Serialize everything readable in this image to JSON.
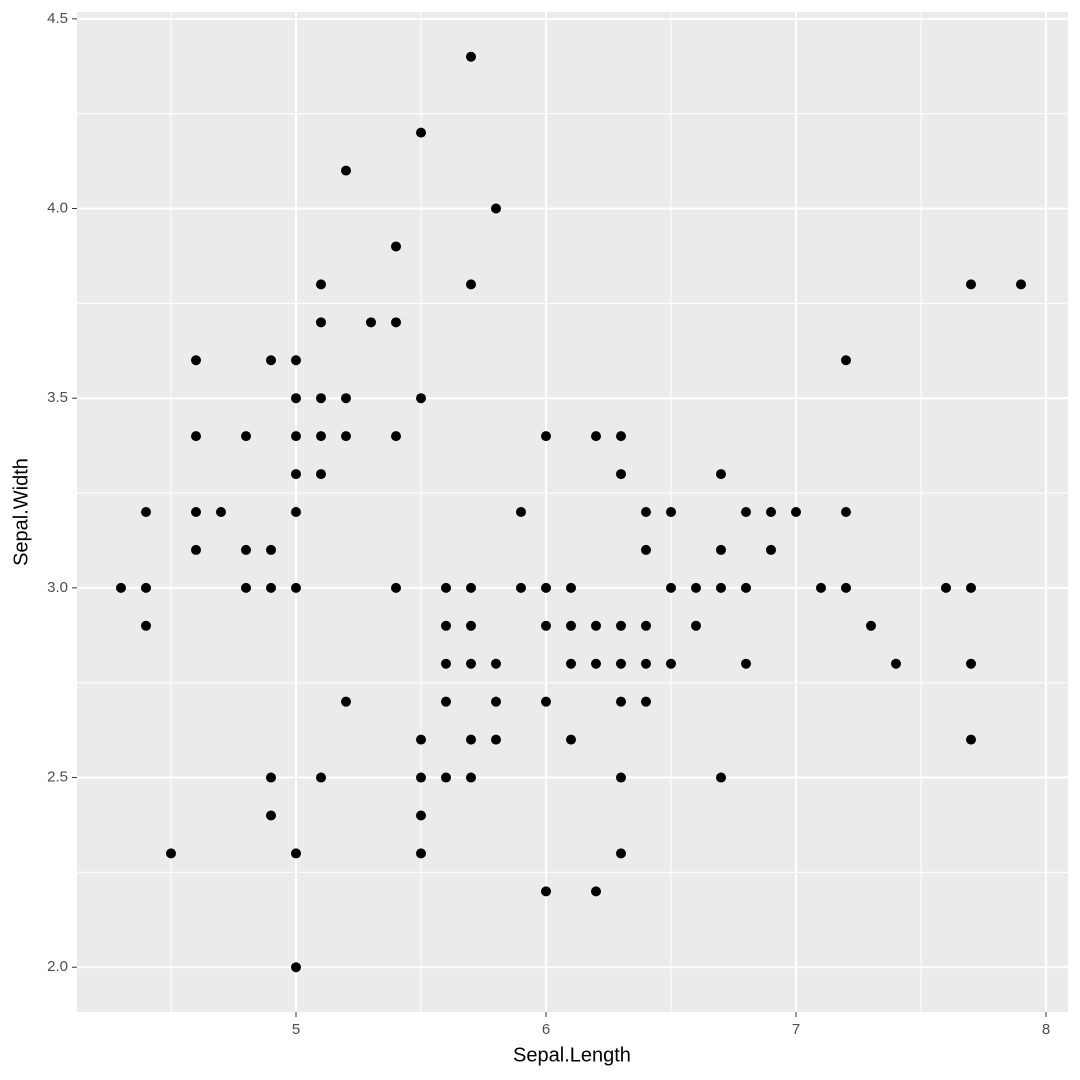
{
  "chart_data": {
    "type": "scatter",
    "x_label": "Sepal.Length",
    "y_label": "Sepal.Width",
    "x": [
      4.3,
      4.4,
      4.4,
      4.4,
      4.5,
      4.6,
      4.6,
      4.6,
      4.6,
      4.7,
      4.8,
      4.8,
      4.8,
      4.9,
      4.9,
      4.9,
      4.9,
      4.9,
      5.0,
      5.0,
      5.0,
      5.0,
      5.0,
      5.0,
      5.0,
      5.0,
      5.1,
      5.1,
      5.1,
      5.1,
      5.1,
      5.1,
      5.2,
      5.2,
      5.2,
      5.2,
      5.3,
      5.4,
      5.4,
      5.4,
      5.4,
      5.5,
      5.5,
      5.5,
      5.5,
      5.5,
      5.5,
      5.6,
      5.6,
      5.6,
      5.6,
      5.6,
      5.7,
      5.7,
      5.7,
      5.7,
      5.7,
      5.7,
      5.7,
      5.8,
      5.8,
      5.8,
      5.8,
      5.9,
      5.9,
      6.0,
      6.0,
      6.0,
      6.0,
      6.0,
      6.1,
      6.1,
      6.1,
      6.1,
      6.2,
      6.2,
      6.2,
      6.2,
      6.3,
      6.3,
      6.3,
      6.3,
      6.3,
      6.3,
      6.3,
      6.4,
      6.4,
      6.4,
      6.4,
      6.4,
      6.5,
      6.5,
      6.5,
      6.6,
      6.6,
      6.7,
      6.7,
      6.7,
      6.7,
      6.8,
      6.8,
      6.8,
      6.9,
      6.9,
      7.0,
      7.1,
      7.2,
      7.2,
      7.2,
      7.3,
      7.4,
      7.6,
      7.7,
      7.7,
      7.7,
      7.7,
      7.9
    ],
    "y": [
      3.0,
      3.2,
      3.0,
      2.9,
      2.3,
      3.6,
      3.4,
      3.2,
      3.1,
      3.2,
      3.4,
      3.1,
      3.0,
      3.6,
      3.1,
      3.0,
      2.5,
      2.4,
      3.6,
      3.5,
      3.4,
      3.3,
      3.2,
      3.0,
      2.3,
      2.0,
      3.8,
      3.7,
      3.5,
      3.4,
      3.3,
      2.5,
      4.1,
      3.5,
      3.4,
      2.7,
      3.7,
      3.9,
      3.7,
      3.4,
      3.0,
      4.2,
      3.5,
      2.6,
      2.5,
      2.4,
      2.3,
      3.0,
      2.9,
      2.8,
      2.7,
      2.5,
      4.4,
      3.8,
      3.0,
      2.9,
      2.8,
      2.6,
      2.5,
      4.0,
      2.8,
      2.7,
      2.6,
      3.2,
      3.0,
      3.4,
      3.0,
      2.9,
      2.7,
      2.2,
      3.0,
      2.9,
      2.8,
      2.6,
      3.4,
      2.9,
      2.8,
      2.2,
      3.4,
      3.3,
      2.9,
      2.8,
      2.7,
      2.5,
      2.3,
      3.2,
      3.1,
      2.9,
      2.8,
      2.7,
      3.2,
      3.0,
      2.8,
      3.0,
      2.9,
      3.3,
      3.1,
      3.0,
      2.5,
      3.2,
      3.0,
      2.8,
      3.2,
      3.1,
      3.2,
      3.0,
      3.6,
      3.2,
      3.0,
      2.9,
      2.8,
      3.0,
      3.8,
      3.0,
      2.8,
      2.6,
      3.8
    ],
    "color": "#000000",
    "xlim": [
      4.124,
      8.088
    ],
    "ylim": [
      1.882,
      4.518
    ],
    "xticks": [
      5,
      6,
      7,
      8
    ],
    "yticks": [
      {
        "value": 2,
        "label": "2.0"
      },
      2.5,
      {
        "value": 3,
        "label": "3.0"
      },
      3.5,
      {
        "value": 4,
        "label": "4.0"
      },
      4.5
    ],
    "x_minor_ticks": [
      4.5,
      5.5,
      6.5,
      7.5
    ],
    "y_minor_ticks": [
      2.25,
      2.75,
      3.25,
      3.75,
      4.25
    ],
    "grid": true
  }
}
